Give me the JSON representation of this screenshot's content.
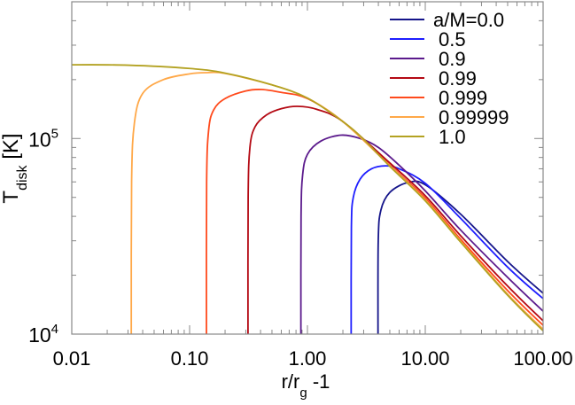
{
  "chart_data": {
    "type": "line",
    "xlabel": "r/r",
    "xlabel_sub": "g",
    "xlabel_suffix": " -1",
    "ylabel": "T",
    "ylabel_sub": "disk",
    "ylabel_suffix": " [K]",
    "x_scale": "log",
    "y_scale": "log",
    "xlim": [
      0.01,
      100
    ],
    "ylim": [
      10000,
      500000
    ],
    "x_ticks": [
      0.01,
      0.1,
      1,
      10,
      100
    ],
    "x_tick_labels": [
      "0.01",
      "0.10",
      "1.00",
      "10.00",
      "100.00"
    ],
    "y_ticks": [
      10000,
      100000
    ],
    "y_tick_labels": [
      {
        "base": "10",
        "exp": "4"
      },
      {
        "base": "10",
        "exp": "5"
      }
    ],
    "grid": false,
    "legend_placement": "top-right",
    "series": [
      {
        "name": "a/M=0.0",
        "color": "#15158a",
        "points": [
          [
            3.97,
            10000
          ],
          [
            3.99,
            30000
          ],
          [
            4.2,
            43000
          ],
          [
            5,
            53000
          ],
          [
            7.1,
            59500
          ],
          [
            10,
            58000
          ],
          [
            20,
            41000
          ],
          [
            50,
            23500
          ],
          [
            100,
            16200
          ]
        ]
      },
      {
        "name": "0.5",
        "color": "#1e1eff",
        "points": [
          [
            2.35,
            10000
          ],
          [
            2.36,
            35000
          ],
          [
            2.45,
            50000
          ],
          [
            2.8,
            62000
          ],
          [
            3.5,
            70000
          ],
          [
            4.6,
            72500
          ],
          [
            6,
            70000
          ],
          [
            10,
            59000
          ],
          [
            20,
            39000
          ],
          [
            50,
            22000
          ],
          [
            100,
            15200
          ]
        ]
      },
      {
        "name": "0.9",
        "color": "#5b1a8c",
        "points": [
          [
            0.88,
            10000
          ],
          [
            0.883,
            40000
          ],
          [
            0.91,
            65000
          ],
          [
            1.0,
            83000
          ],
          [
            1.3,
            97000
          ],
          [
            1.93,
            104000
          ],
          [
            2.8,
            100000
          ],
          [
            4,
            90000
          ],
          [
            6,
            73000
          ],
          [
            10,
            54000
          ],
          [
            20,
            34000
          ],
          [
            50,
            19500
          ],
          [
            100,
            13100
          ]
        ]
      },
      {
        "name": "0.99",
        "color": "#b40a14",
        "points": [
          [
            0.313,
            10000
          ],
          [
            0.314,
            50000
          ],
          [
            0.325,
            90000
          ],
          [
            0.36,
            115000
          ],
          [
            0.45,
            132000
          ],
          [
            0.6,
            142000
          ],
          [
            0.82,
            146000
          ],
          [
            1.2,
            141000
          ],
          [
            2,
            122000
          ],
          [
            5,
            75000
          ],
          [
            10,
            51000
          ],
          [
            20,
            31800
          ],
          [
            50,
            17600
          ],
          [
            100,
            11700
          ]
        ]
      },
      {
        "name": "0.999",
        "color": "#ff4a1c",
        "points": [
          [
            0.139,
            10000
          ],
          [
            0.1395,
            60000
          ],
          [
            0.145,
            110000
          ],
          [
            0.16,
            140000
          ],
          [
            0.2,
            160000
          ],
          [
            0.3,
            175000
          ],
          [
            0.41,
            178000
          ],
          [
            0.6,
            172000
          ],
          [
            1,
            160000
          ],
          [
            2,
            122000
          ],
          [
            5,
            73000
          ],
          [
            10,
            49500
          ],
          [
            20,
            30500
          ],
          [
            50,
            16700
          ],
          [
            100,
            11100
          ]
        ]
      },
      {
        "name": "0.99999",
        "color": "#ffa848",
        "points": [
          [
            0.032,
            10000
          ],
          [
            0.0322,
            60000
          ],
          [
            0.034,
            120000
          ],
          [
            0.04,
            170000
          ],
          [
            0.06,
            200000
          ],
          [
            0.1,
            214000
          ],
          [
            0.14,
            217000
          ],
          [
            0.2,
            215000
          ],
          [
            0.5,
            188000
          ],
          [
            1,
            161000
          ],
          [
            2,
            122000
          ],
          [
            5,
            72500
          ],
          [
            10,
            48500
          ],
          [
            20,
            29800
          ],
          [
            50,
            16000
          ],
          [
            100,
            10600
          ]
        ]
      },
      {
        "name": "1.0",
        "color": "#b3a222",
        "points": [
          [
            0.01,
            238000
          ],
          [
            0.03,
            237000
          ],
          [
            0.1,
            228000
          ],
          [
            0.2,
            216000
          ],
          [
            0.5,
            188000
          ],
          [
            1,
            161000
          ],
          [
            2,
            122000
          ],
          [
            3,
            99000
          ],
          [
            5,
            72000
          ],
          [
            10,
            48000
          ],
          [
            20,
            29500
          ],
          [
            50,
            15800
          ],
          [
            100,
            10400
          ]
        ]
      }
    ]
  }
}
